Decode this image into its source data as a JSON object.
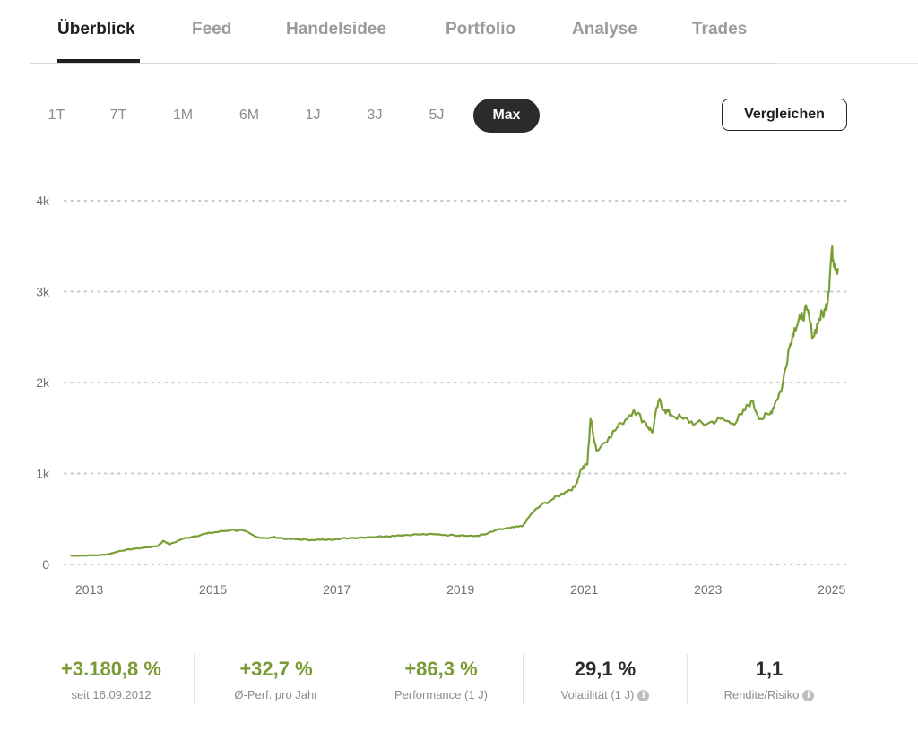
{
  "tabs": [
    {
      "label": "Überblick",
      "active": true
    },
    {
      "label": "Feed"
    },
    {
      "label": "Handelsidee"
    },
    {
      "label": "Portfolio"
    },
    {
      "label": "Analyse"
    },
    {
      "label": "Trades"
    }
  ],
  "ranges": [
    "1T",
    "7T",
    "1M",
    "6M",
    "1J",
    "3J",
    "5J",
    "Max"
  ],
  "active_range": "Max",
  "compare_button": "Vergleichen",
  "colors": {
    "line": "#7a9e36",
    "positive": "#7a9a33",
    "accent_dark": "#2b2b2b"
  },
  "chart_data": {
    "type": "line",
    "series": [
      {
        "x": [
          2012.71,
          2012.9,
          2013.1,
          2013.3,
          2013.5,
          2013.7,
          2013.9,
          2014.1,
          2014.2,
          2014.3,
          2014.5,
          2014.7,
          2014.9,
          2015.1,
          2015.3,
          2015.5,
          2015.7,
          2015.9,
          2016.0,
          2016.2,
          2016.4,
          2016.6,
          2016.8,
          2017.0,
          2017.2,
          2017.5,
          2017.8,
          2018.0,
          2018.3,
          2018.6,
          2018.9,
          2019.0,
          2019.2,
          2019.4,
          2019.6,
          2019.8,
          2020.0,
          2020.15,
          2020.3,
          2020.5,
          2020.7,
          2020.85,
          2020.95,
          2021.05,
          2021.1,
          2021.2,
          2021.4,
          2021.6,
          2021.8,
          2022.0,
          2022.1,
          2022.2,
          2022.3,
          2022.4,
          2022.6,
          2022.8,
          2023.0,
          2023.2,
          2023.4,
          2023.55,
          2023.7,
          2023.85,
          2024.0,
          2024.1,
          2024.2,
          2024.3,
          2024.4,
          2024.5,
          2024.6,
          2024.7,
          2024.8,
          2024.9,
          2024.95,
          2025.0,
          2025.05,
          2025.1
        ],
        "y": [
          95,
          98,
          100,
          110,
          150,
          170,
          185,
          200,
          260,
          220,
          280,
          310,
          340,
          360,
          380,
          370,
          300,
          290,
          300,
          280,
          275,
          270,
          270,
          280,
          290,
          300,
          310,
          320,
          330,
          330,
          320,
          320,
          310,
          330,
          380,
          400,
          420,
          560,
          650,
          720,
          800,
          850,
          1050,
          1100,
          1600,
          1250,
          1400,
          1550,
          1700,
          1550,
          1450,
          1800,
          1700,
          1650,
          1600,
          1550,
          1550,
          1600,
          1550,
          1650,
          1800,
          1600,
          1650,
          1800,
          1950,
          2350,
          2600,
          2700,
          2800,
          2500,
          2700,
          2800,
          3000,
          3450,
          3300,
          3250
        ]
      }
    ],
    "xlim": [
      2012.6,
      2025.25
    ],
    "ylim": [
      0,
      4000
    ],
    "y_ticks": [
      {
        "value": 0,
        "label": "0"
      },
      {
        "value": 1000,
        "label": "1k"
      },
      {
        "value": 2000,
        "label": "2k"
      },
      {
        "value": 3000,
        "label": "3k"
      },
      {
        "value": 4000,
        "label": "4k"
      }
    ],
    "x_ticks": [
      {
        "value": 2013,
        "label": "2013"
      },
      {
        "value": 2015,
        "label": "2015"
      },
      {
        "value": 2017,
        "label": "2017"
      },
      {
        "value": 2019,
        "label": "2019"
      },
      {
        "value": 2021,
        "label": "2021"
      },
      {
        "value": 2023,
        "label": "2023"
      },
      {
        "value": 2025,
        "label": "2025"
      }
    ],
    "grid": "horizontal-dotted"
  },
  "stats": [
    {
      "value": "+3.180,8 %",
      "label": "seit 16.09.2012",
      "tone": "positive",
      "info": false
    },
    {
      "value": "+32,7 %",
      "label": "Ø-Perf. pro Jahr",
      "tone": "positive",
      "info": false
    },
    {
      "value": "+86,3 %",
      "label": "Performance (1 J)",
      "tone": "positive",
      "info": false
    },
    {
      "value": "29,1 %",
      "label": "Volatilität (1 J)",
      "tone": "neutral",
      "info": true
    },
    {
      "value": "1,1",
      "label": "Rendite/Risiko",
      "tone": "neutral",
      "info": true
    }
  ]
}
